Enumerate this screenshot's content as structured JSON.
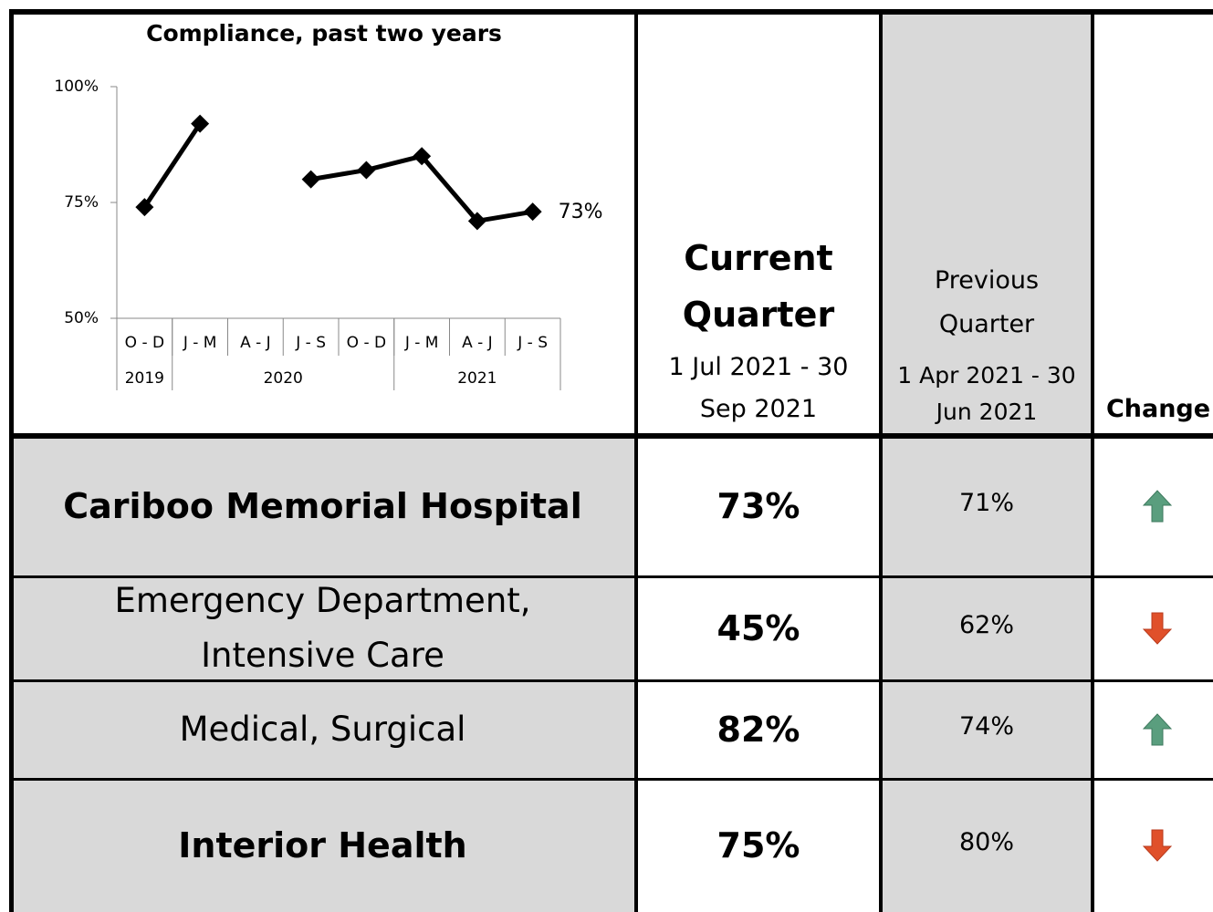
{
  "chart_data": {
    "type": "line",
    "title": "Compliance, past two years",
    "categories": [
      "O - D",
      "J - M",
      "A - J",
      "J - S",
      "O - D",
      "J - M",
      "A - J",
      "J - S"
    ],
    "year_groups": [
      {
        "label": "2019",
        "span": 1
      },
      {
        "label": "2020",
        "span": 4
      },
      {
        "label": "2021",
        "span": 3
      }
    ],
    "series": [
      {
        "name": "Compliance",
        "color": "#000000",
        "values": [
          74,
          92,
          null,
          80,
          82,
          85,
          71,
          73
        ],
        "value_labels": [
          null,
          null,
          null,
          null,
          null,
          null,
          null,
          "73%"
        ]
      }
    ],
    "ylim": [
      50,
      100
    ],
    "yticks": [
      {
        "value": 50,
        "label": "50%"
      },
      {
        "value": 75,
        "label": "75%"
      },
      {
        "value": 100,
        "label": "100%"
      }
    ],
    "grid": false
  },
  "table": {
    "columns": [
      {
        "title": "Current Quarter",
        "period": "1 Jul 2021 - 30 Sep 2021"
      },
      {
        "title": "Previous Quarter",
        "period": "1 Apr 2021 - 30 Jun 2021"
      },
      {
        "title": "Change"
      }
    ],
    "rows": [
      {
        "name": "Cariboo Memorial Hospital",
        "bold": true,
        "current": "73%",
        "previous": "71%",
        "change": "up"
      },
      {
        "name": "Emergency Department, Intensive Care",
        "bold": false,
        "current": "45%",
        "previous": "62%",
        "change": "down"
      },
      {
        "name": "Medical, Surgical",
        "bold": false,
        "current": "82%",
        "previous": "74%",
        "change": "up"
      },
      {
        "name": "Interior Health",
        "bold": true,
        "current": "75%",
        "previous": "80%",
        "change": "down"
      }
    ]
  }
}
